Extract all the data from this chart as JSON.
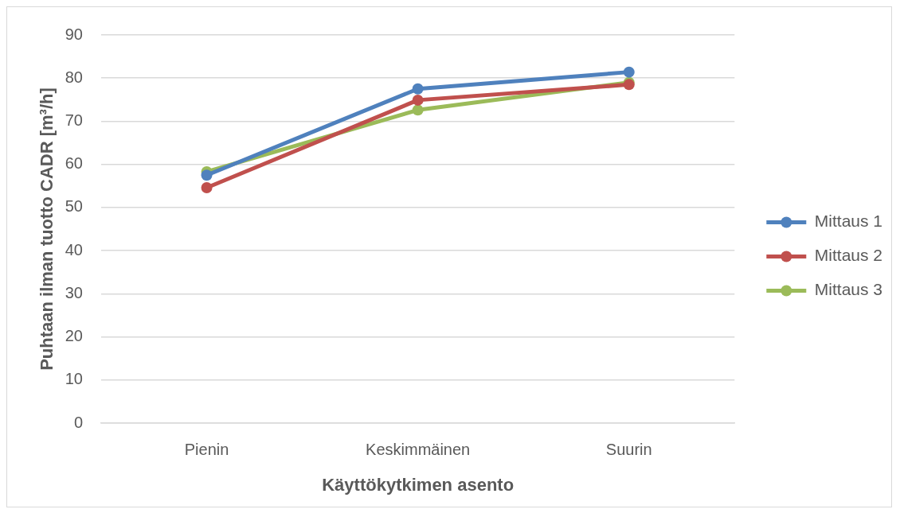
{
  "chart_data": {
    "type": "line",
    "xlabel": "Käyttökytkimen asento",
    "ylabel": "Puhtaan ilman tuotto CADR [m³/h]",
    "categories": [
      "Pienin",
      "Keskimmäinen",
      "Suurin"
    ],
    "series": [
      {
        "name": "Mittaus 1",
        "color": "#4f81bd",
        "values": [
          57.5,
          77.5,
          81.4
        ]
      },
      {
        "name": "Mittaus 2",
        "color": "#c0504d",
        "values": [
          54.6,
          74.9,
          78.5
        ]
      },
      {
        "name": "Mittaus 3",
        "color": "#9bbb59",
        "values": [
          58.3,
          72.6,
          79.0
        ]
      }
    ],
    "ylim": [
      0,
      90
    ],
    "yticks": [
      0,
      10,
      20,
      30,
      40,
      50,
      60,
      70,
      80,
      90
    ],
    "grid": "y",
    "legend": "right",
    "marker": "circle",
    "line_style": "solid"
  }
}
